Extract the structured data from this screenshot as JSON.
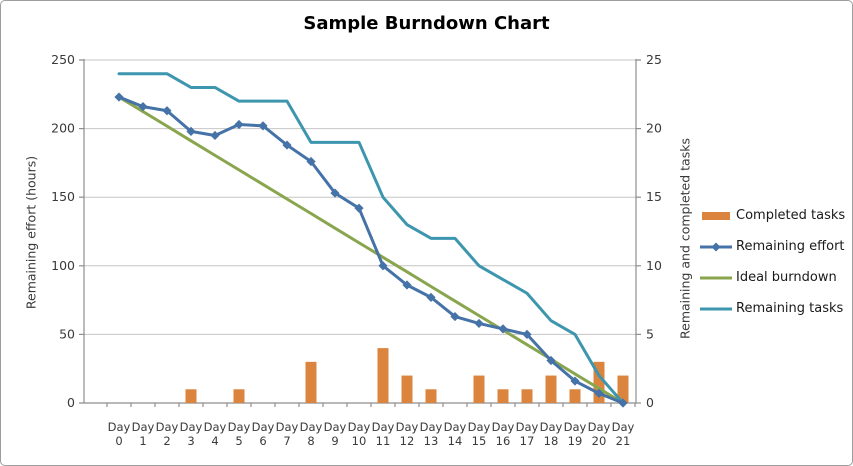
{
  "chart_data": {
    "type": "combo",
    "title": "Sample Burndown Chart",
    "ylabel_left": "Remaining effort (hours)",
    "ylabel_right": "Remaining and completed tasks",
    "ylim_left": [
      0,
      250
    ],
    "ylim_right": [
      0,
      25
    ],
    "yticks_left": [
      0,
      50,
      100,
      150,
      200,
      250
    ],
    "yticks_right": [
      0,
      5,
      10,
      15,
      20,
      25
    ],
    "grid": "horizontal",
    "legend_position": "right",
    "categories": [
      "Day 0",
      "Day 1",
      "Day 2",
      "Day 3",
      "Day 4",
      "Day 5",
      "Day 6",
      "Day 7",
      "Day 8",
      "Day 9",
      "Day 10",
      "Day 11",
      "Day 12",
      "Day 13",
      "Day 14",
      "Day 15",
      "Day 16",
      "Day 17",
      "Day 18",
      "Day 19",
      "Day 20",
      "Day 21"
    ],
    "colors": {
      "grid": "#c6c6c6",
      "axis": "#8e8e8e",
      "tick_text": "#3a3a3a"
    },
    "series": [
      {
        "name": "Completed tasks",
        "type": "bar",
        "axis": "right",
        "color": "#DB843D",
        "values": [
          0,
          0,
          0,
          1,
          0,
          1,
          0,
          0,
          3,
          0,
          0,
          4,
          2,
          1,
          0,
          2,
          1,
          1,
          2,
          1,
          3,
          2
        ]
      },
      {
        "name": "Remaining effort",
        "type": "line",
        "marker": "diamond",
        "axis": "left",
        "color": "#4572A7",
        "values": [
          223,
          216,
          213,
          198,
          195,
          203,
          202,
          188,
          176,
          153,
          142,
          100,
          86,
          77,
          63,
          58,
          54,
          50,
          31,
          16,
          7,
          0
        ]
      },
      {
        "name": "Ideal burndown",
        "type": "line",
        "axis": "left",
        "color": "#89A54E",
        "values": [
          223,
          212.4,
          201.8,
          191.1,
          180.5,
          169.9,
          159.3,
          148.7,
          138.1,
          127.4,
          116.8,
          106.2,
          95.6,
          84.9,
          74.3,
          63.7,
          53.1,
          42.5,
          31.9,
          21.2,
          10.6,
          0
        ]
      },
      {
        "name": "Remaining tasks",
        "type": "line",
        "axis": "right",
        "color": "#3D96AE",
        "values": [
          24,
          24,
          24,
          23,
          23,
          22,
          22,
          22,
          19,
          19,
          19,
          15,
          13,
          12,
          12,
          10,
          9,
          8,
          6,
          5,
          2,
          0
        ]
      }
    ]
  }
}
